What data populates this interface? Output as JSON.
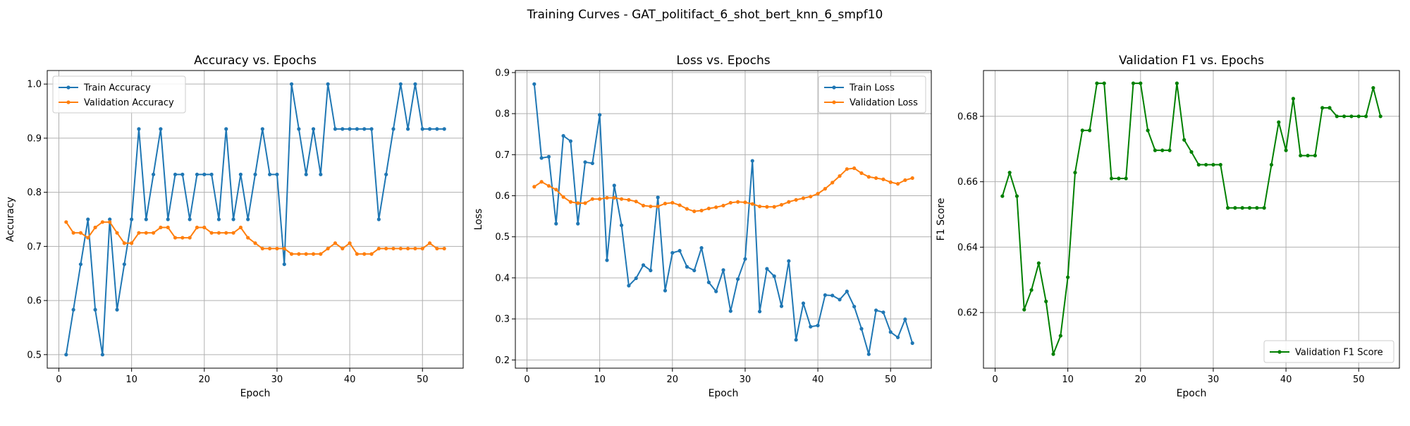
{
  "figure": {
    "title": "Training Curves - GAT_politifact_6_shot_bert_knn_6_smpf10"
  },
  "colors": {
    "train": "#1f77b4",
    "validation": "#ff7f0e",
    "f1": "#008000",
    "grid": "#b0b0b0"
  },
  "chart_data": [
    {
      "type": "line",
      "title": "Accuracy vs. Epochs",
      "xlabel": "Epoch",
      "ylabel": "Accuracy",
      "xlim": [
        -1.6,
        55.6
      ],
      "ylim": [
        0.475,
        1.025
      ],
      "xticks": [
        0,
        10,
        20,
        30,
        40,
        50
      ],
      "yticks": [
        0.5,
        0.6,
        0.7,
        0.8,
        0.9,
        1.0
      ],
      "ytick_format": 1,
      "grid": true,
      "legend": "upper-left",
      "x": [
        1,
        2,
        3,
        4,
        5,
        6,
        7,
        8,
        9,
        10,
        11,
        12,
        13,
        14,
        15,
        16,
        17,
        18,
        19,
        20,
        21,
        22,
        23,
        24,
        25,
        26,
        27,
        28,
        29,
        30,
        31,
        32,
        33,
        34,
        35,
        36,
        37,
        38,
        39,
        40,
        41,
        42,
        43,
        44,
        45,
        46,
        47,
        48,
        49,
        50,
        51,
        52,
        53
      ],
      "series": [
        {
          "name": "Train Accuracy",
          "color": "#1f77b4",
          "values": [
            0.5,
            0.583,
            0.667,
            0.75,
            0.583,
            0.5,
            0.75,
            0.583,
            0.667,
            0.75,
            0.917,
            0.75,
            0.833,
            0.917,
            0.75,
            0.833,
            0.833,
            0.75,
            0.833,
            0.833,
            0.833,
            0.75,
            0.917,
            0.75,
            0.833,
            0.75,
            0.833,
            0.917,
            0.833,
            0.833,
            0.667,
            1.0,
            0.917,
            0.833,
            0.917,
            0.833,
            1.0,
            0.917,
            0.917,
            0.917,
            0.917,
            0.917,
            0.917,
            0.75,
            0.833,
            0.917,
            1.0,
            0.917,
            1.0,
            0.917,
            0.917,
            0.917,
            0.917
          ]
        },
        {
          "name": "Validation Accuracy",
          "color": "#ff7f0e",
          "values": [
            0.745,
            0.725,
            0.725,
            0.716,
            0.735,
            0.745,
            0.745,
            0.725,
            0.706,
            0.706,
            0.725,
            0.725,
            0.725,
            0.735,
            0.735,
            0.716,
            0.716,
            0.716,
            0.735,
            0.735,
            0.725,
            0.725,
            0.725,
            0.725,
            0.735,
            0.716,
            0.706,
            0.696,
            0.696,
            0.696,
            0.696,
            0.686,
            0.686,
            0.686,
            0.686,
            0.686,
            0.696,
            0.706,
            0.696,
            0.706,
            0.686,
            0.686,
            0.686,
            0.696,
            0.696,
            0.696,
            0.696,
            0.696,
            0.696,
            0.696,
            0.706,
            0.696,
            0.696
          ]
        }
      ]
    },
    {
      "type": "line",
      "title": "Loss vs. Epochs",
      "xlabel": "Epoch",
      "ylabel": "Loss",
      "xlim": [
        -1.6,
        55.6
      ],
      "ylim": [
        0.18,
        0.905
      ],
      "xticks": [
        0,
        10,
        20,
        30,
        40,
        50
      ],
      "yticks": [
        0.2,
        0.3,
        0.4,
        0.5,
        0.6,
        0.7,
        0.8,
        0.9
      ],
      "ytick_format": 1,
      "grid": true,
      "legend": "upper-right",
      "x": [
        1,
        2,
        3,
        4,
        5,
        6,
        7,
        8,
        9,
        10,
        11,
        12,
        13,
        14,
        15,
        16,
        17,
        18,
        19,
        20,
        21,
        22,
        23,
        24,
        25,
        26,
        27,
        28,
        29,
        30,
        31,
        32,
        33,
        34,
        35,
        36,
        37,
        38,
        39,
        40,
        41,
        42,
        43,
        44,
        45,
        46,
        47,
        48,
        49,
        50,
        51,
        52,
        53
      ],
      "series": [
        {
          "name": "Train Loss",
          "color": "#1f77b4",
          "values": [
            0.872,
            0.692,
            0.695,
            0.532,
            0.746,
            0.733,
            0.532,
            0.682,
            0.679,
            0.797,
            0.443,
            0.625,
            0.528,
            0.381,
            0.399,
            0.431,
            0.418,
            0.596,
            0.369,
            0.461,
            0.466,
            0.427,
            0.418,
            0.473,
            0.389,
            0.367,
            0.419,
            0.319,
            0.397,
            0.446,
            0.685,
            0.318,
            0.422,
            0.404,
            0.331,
            0.441,
            0.249,
            0.338,
            0.281,
            0.284,
            0.358,
            0.357,
            0.347,
            0.367,
            0.33,
            0.276,
            0.214,
            0.321,
            0.316,
            0.268,
            0.255,
            0.299,
            0.241
          ]
        },
        {
          "name": "Validation Loss",
          "color": "#ff7f0e",
          "values": [
            0.622,
            0.634,
            0.624,
            0.615,
            0.597,
            0.585,
            0.582,
            0.582,
            0.592,
            0.592,
            0.595,
            0.595,
            0.592,
            0.59,
            0.586,
            0.576,
            0.574,
            0.574,
            0.581,
            0.583,
            0.577,
            0.568,
            0.562,
            0.564,
            0.569,
            0.572,
            0.576,
            0.583,
            0.585,
            0.584,
            0.58,
            0.574,
            0.573,
            0.573,
            0.578,
            0.585,
            0.59,
            0.594,
            0.598,
            0.605,
            0.617,
            0.632,
            0.648,
            0.665,
            0.667,
            0.655,
            0.646,
            0.643,
            0.64,
            0.633,
            0.629,
            0.638,
            0.643
          ]
        }
      ]
    },
    {
      "type": "line",
      "title": "Validation F1 vs. Epochs",
      "xlabel": "Epoch",
      "ylabel": "F1 Score",
      "xlim": [
        -1.6,
        55.6
      ],
      "ylim": [
        0.603,
        0.694
      ],
      "xticks": [
        0,
        10,
        20,
        30,
        40,
        50
      ],
      "yticks": [
        0.62,
        0.64,
        0.66,
        0.68
      ],
      "ytick_format": 2,
      "grid": true,
      "legend": "lower-right",
      "x": [
        1,
        2,
        3,
        4,
        5,
        6,
        7,
        8,
        9,
        10,
        11,
        12,
        13,
        14,
        15,
        16,
        17,
        18,
        19,
        20,
        21,
        22,
        23,
        24,
        25,
        26,
        27,
        28,
        29,
        30,
        31,
        32,
        33,
        34,
        35,
        36,
        37,
        38,
        39,
        40,
        41,
        42,
        43,
        44,
        45,
        46,
        47,
        48,
        49,
        50,
        51,
        52,
        53
      ],
      "series": [
        {
          "name": "Validation F1 Score",
          "color": "#008000",
          "values": [
            0.6556,
            0.6628,
            0.6556,
            0.6209,
            0.6269,
            0.6351,
            0.6234,
            0.6073,
            0.6129,
            0.6308,
            0.6628,
            0.6757,
            0.6757,
            0.6901,
            0.6901,
            0.661,
            0.661,
            0.661,
            0.6901,
            0.6901,
            0.6757,
            0.6696,
            0.6696,
            0.6696,
            0.6901,
            0.6728,
            0.6691,
            0.6652,
            0.6652,
            0.6652,
            0.6652,
            0.652,
            0.652,
            0.652,
            0.652,
            0.652,
            0.652,
            0.6652,
            0.6782,
            0.6696,
            0.6854,
            0.668,
            0.668,
            0.668,
            0.6826,
            0.6826,
            0.68,
            0.68,
            0.68,
            0.68,
            0.68,
            0.6887,
            0.68
          ]
        }
      ]
    }
  ]
}
